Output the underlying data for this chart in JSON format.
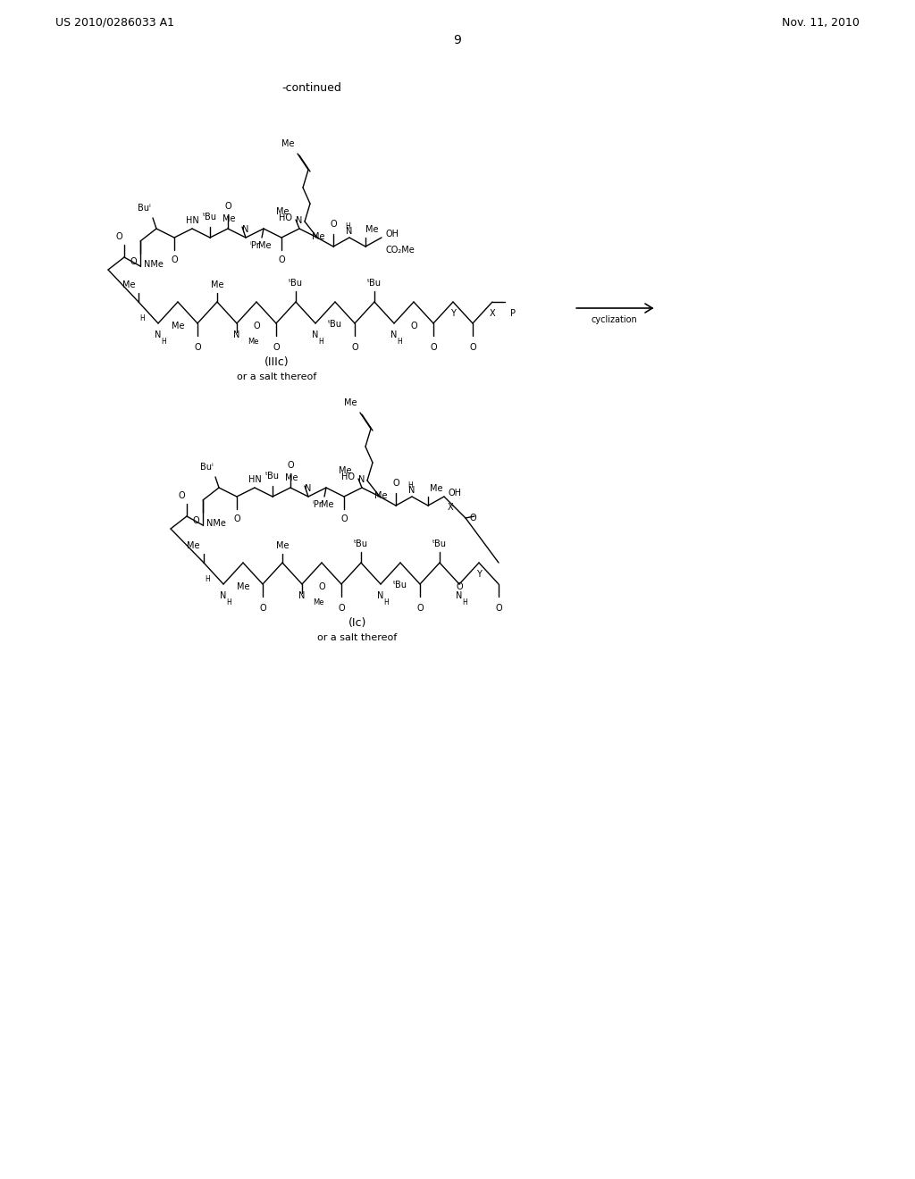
{
  "page_number": "9",
  "left_header": "US 2010/0286033 A1",
  "right_header": "Nov. 11, 2010",
  "continued_text": "-continued",
  "compound1_label": "(IIIc)",
  "compound1_salt": "or a salt thereof",
  "compound2_label": "(Ic)",
  "compound2_salt": "or a salt thereof",
  "cyclization_text": "cyclization",
  "bg_color": "#ffffff"
}
